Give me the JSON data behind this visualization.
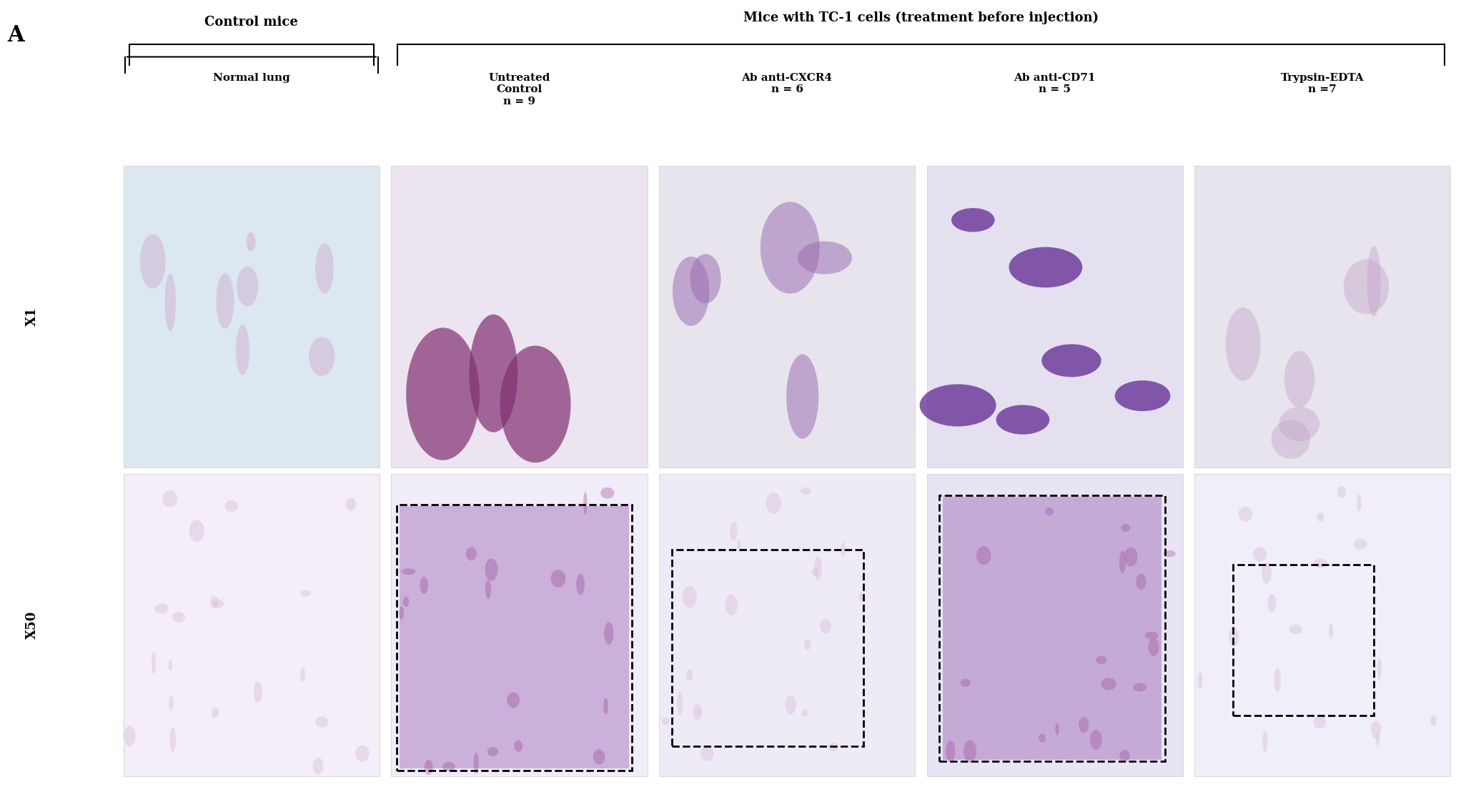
{
  "figure_label": "A",
  "main_title": "Mice with TC-1 cells (treatment before injection)",
  "group1_label": "Control mice",
  "col_labels": [
    "Normal lung",
    "Untreated\nControl\nn = 9",
    "Ab anti-CXCR4\nn = 6",
    "Ab anti-CD71\nn = 5",
    "Trypsin-EDTA\nn =7"
  ],
  "row_labels": [
    "X1",
    "X50"
  ],
  "background_color": "#ffffff",
  "image_bg_colors_row1": [
    "#e8e0ee",
    "#f0e8f0",
    "#ece8f0",
    "#e8e0f0",
    "#ede8f0"
  ],
  "image_bg_colors_row2": [
    "#f0ecf4",
    "#ede8f4",
    "#ede8f4",
    "#e8e4f0",
    "#eeeaf4"
  ],
  "tissue_colors_row1": [
    "#c8a0c8",
    "#9b3a7a",
    "#b890c8",
    "#7840a0",
    "#d0b0d8"
  ],
  "tissue_colors_row2": [
    "#d0a8d0",
    "#9038780",
    "#c0a0c8",
    "#683880",
    "#d8c0e0"
  ]
}
